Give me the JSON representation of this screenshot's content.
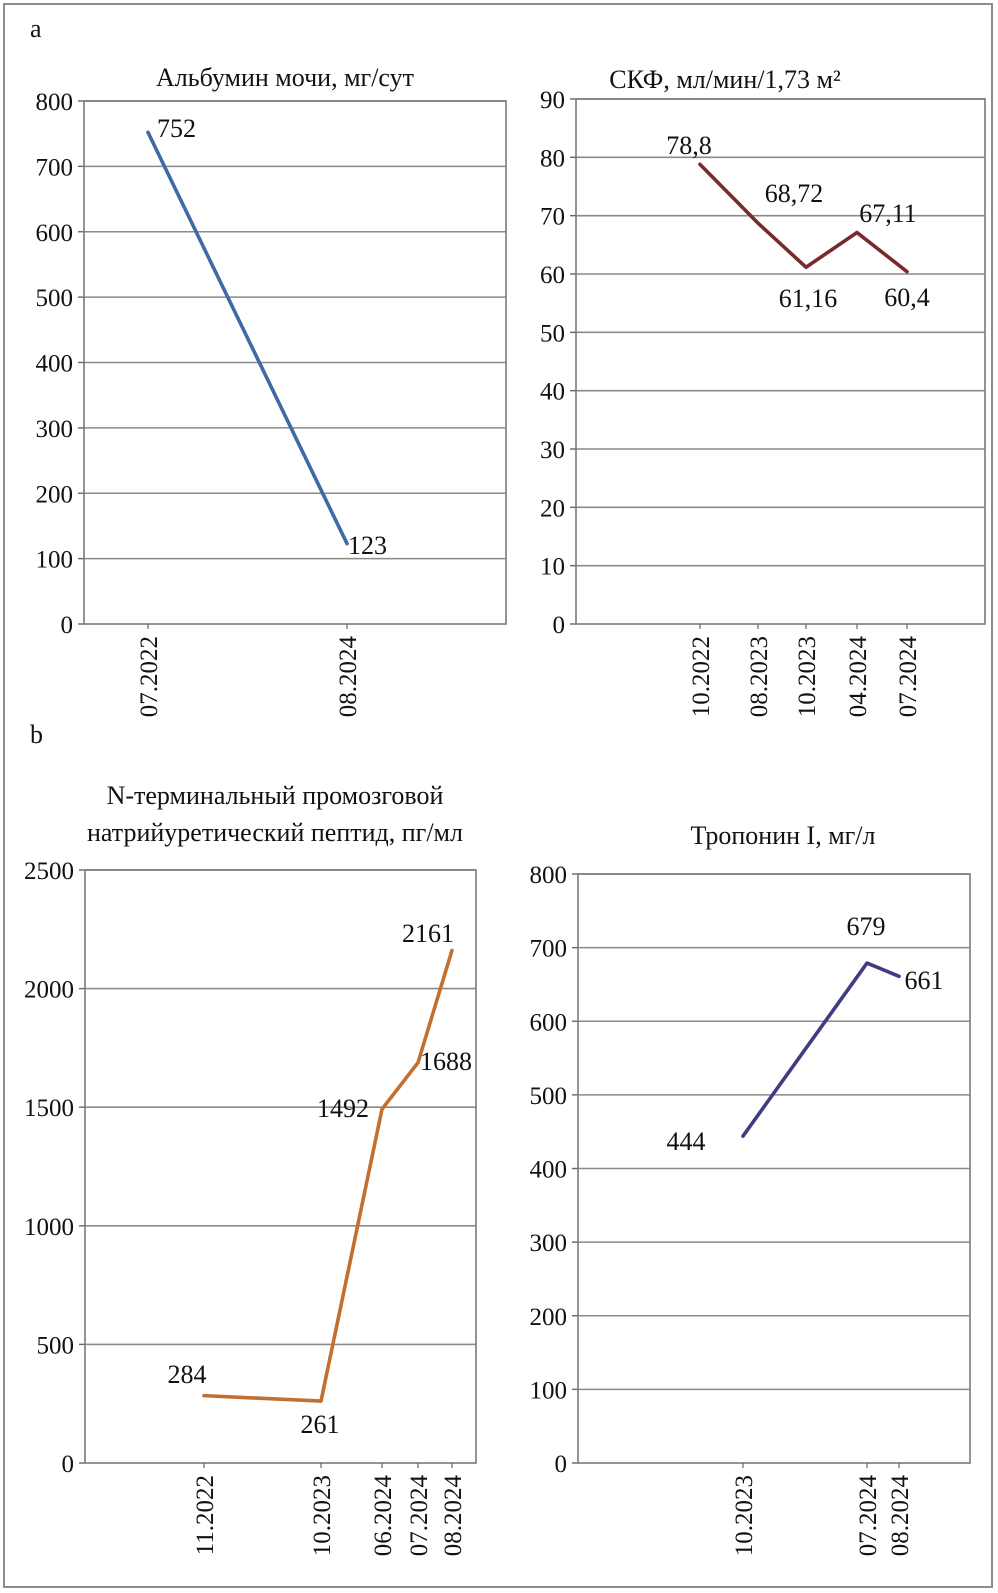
{
  "panels": {
    "a": "a",
    "b": "b"
  },
  "chart_data": [
    {
      "type": "line",
      "title": "Альбумин мочи, мг/сут",
      "categories": [
        "07.2022",
        "08.2024"
      ],
      "values": [
        752,
        123
      ],
      "value_labels": [
        "752",
        "123"
      ],
      "ylim": [
        0,
        800
      ],
      "yticks": [
        0,
        100,
        200,
        300,
        400,
        500,
        600,
        700,
        800
      ],
      "grid": true,
      "color": "#3e6aa6"
    },
    {
      "type": "line",
      "title": "СКФ, мл/мин/1,73 м²",
      "categories": [
        "10.2022",
        "08.2023",
        "10.2023",
        "04.2024",
        "07.2024"
      ],
      "values": [
        78.8,
        68.72,
        61.16,
        67.11,
        60.4
      ],
      "value_labels": [
        "78,8",
        "68,72",
        "61,16",
        "67,11",
        "60,4"
      ],
      "ylim": [
        0,
        90
      ],
      "yticks": [
        0,
        10,
        20,
        30,
        40,
        50,
        60,
        70,
        80,
        90
      ],
      "grid": true,
      "color": "#7a2a2e"
    },
    {
      "type": "line",
      "title_lines": [
        "N-терминальный промозговой",
        "натрийуретический пептид, пг/мл"
      ],
      "categories": [
        "11.2022",
        "10.2023",
        "06.2024",
        "07.2024",
        "08.2024"
      ],
      "values": [
        284,
        261,
        1492,
        1688,
        2161
      ],
      "value_labels": [
        "284",
        "261",
        "1492",
        "1688",
        "2161"
      ],
      "ylim": [
        0,
        2500
      ],
      "yticks": [
        0,
        500,
        1000,
        1500,
        2000,
        2500
      ],
      "grid": true,
      "color": "#c26f2f"
    },
    {
      "type": "line",
      "title": "Тропонин I, мг/л",
      "categories": [
        "10.2023",
        "07.2024",
        "08.2024"
      ],
      "values": [
        444,
        679,
        661
      ],
      "value_labels": [
        "444",
        "679",
        "661"
      ],
      "ylim": [
        0,
        800
      ],
      "yticks": [
        0,
        100,
        200,
        300,
        400,
        500,
        600,
        700,
        800
      ],
      "grid": true,
      "color": "#3f3c83"
    }
  ]
}
